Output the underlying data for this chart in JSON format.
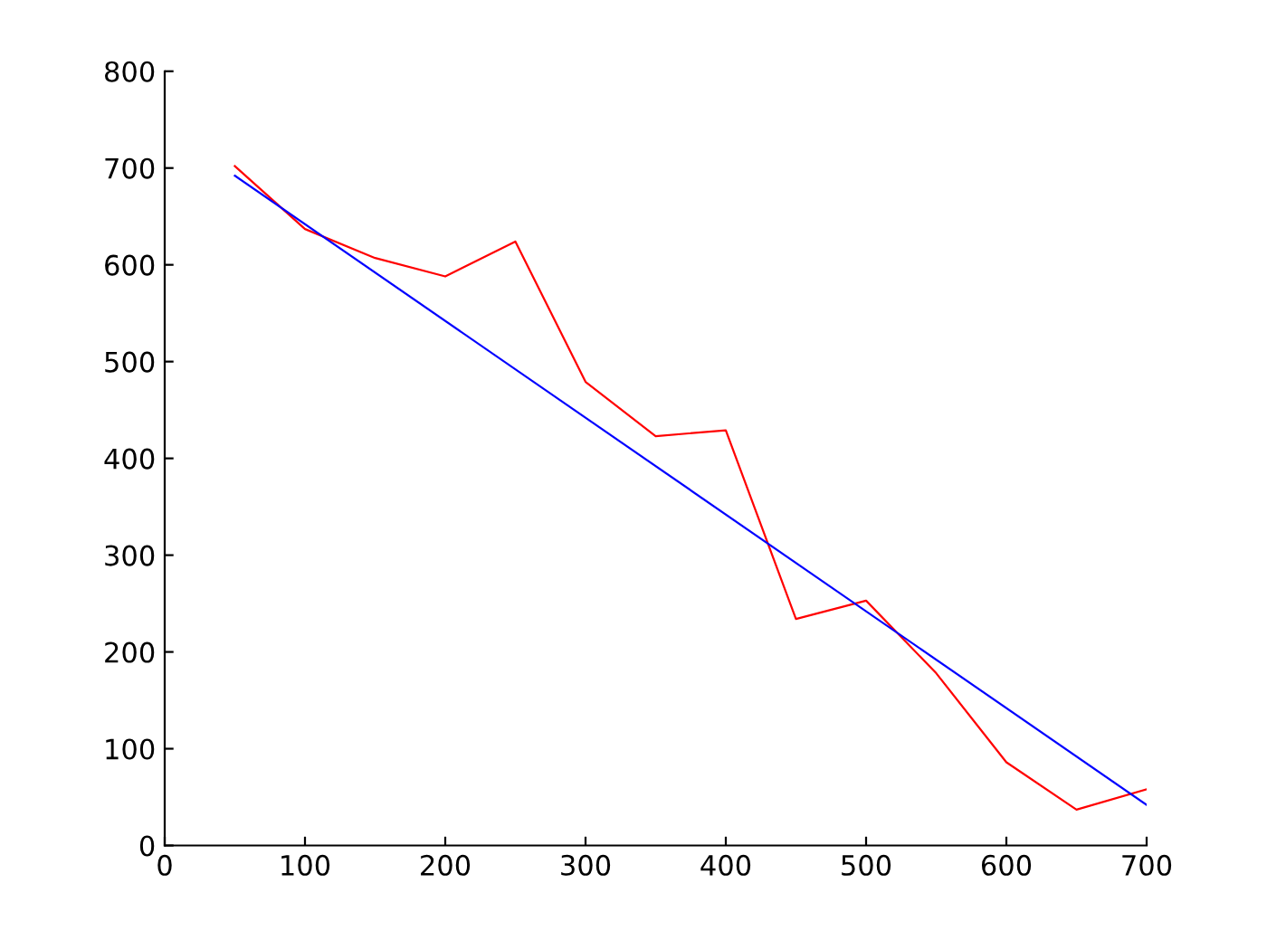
{
  "chart_data": {
    "type": "line",
    "xlim": [
      0,
      700
    ],
    "ylim": [
      0,
      800
    ],
    "xticks": [
      0,
      100,
      200,
      300,
      400,
      500,
      600,
      700
    ],
    "yticks": [
      0,
      100,
      200,
      300,
      400,
      500,
      600,
      700,
      800
    ],
    "grid": false,
    "legend": false,
    "marker": "none",
    "line_style": "solid",
    "series": [
      {
        "color": "#ff0000",
        "x": [
          50,
          100,
          150,
          200,
          250,
          300,
          350,
          400,
          450,
          500,
          550,
          600,
          650,
          700
        ],
        "values": [
          702,
          637,
          607,
          588,
          624,
          479,
          423,
          429,
          234,
          253,
          178,
          86,
          37,
          58
        ]
      },
      {
        "color": "#0000ff",
        "x": [
          50,
          700
        ],
        "values": [
          692,
          42
        ]
      }
    ]
  }
}
